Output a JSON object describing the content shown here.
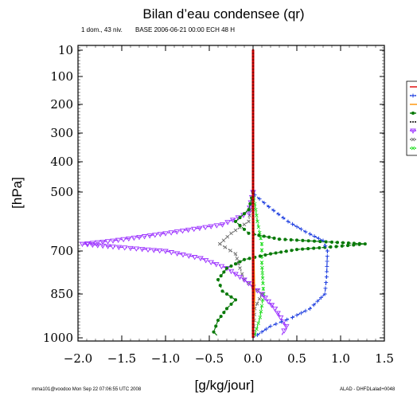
{
  "header": {
    "title": "Bilan d’eau condensee (qr)",
    "subtitle_left": "1 dom., 43 niv.",
    "subtitle_right": "BASE 2006-06-21 00:00 ECH 48 H"
  },
  "footer": {
    "left": "mma101@voodoo Mon Sep 22 07:06:55 UTC 2008",
    "right": "ALAD - DHFDLalad+0048"
  },
  "chart_data": {
    "type": "line",
    "xlabel": "[g/kg/jour]",
    "ylabel": "[hPa]",
    "xlim": [
      -2.0,
      1.5
    ],
    "xticks": [
      -2.0,
      -1.5,
      -1.0,
      -0.5,
      0.0,
      0.5,
      1.0,
      1.5
    ],
    "xtick_labels": [
      "−2.0",
      "−1.5",
      "−1.0",
      "−0.5",
      "0.0",
      "0.5",
      "1.0",
      "1.5"
    ],
    "yticks": [
      10,
      100,
      200,
      300,
      400,
      500,
      700,
      850,
      1000
    ],
    "ytick_labels": [
      "10",
      "100",
      "200",
      "300",
      "400",
      "500",
      "700",
      "850",
      "1000"
    ],
    "y_scale": "piecewise pressure axis, increasing downward",
    "grid": false,
    "legend_position": "right, outside plot",
    "series": [
      {
        "color": "#e00000",
        "dash": "solid",
        "marker": "none",
        "points": [
          [
            0,
            10
          ],
          [
            0,
            100
          ],
          [
            0,
            200
          ],
          [
            0,
            300
          ],
          [
            0,
            400
          ],
          [
            0,
            500
          ],
          [
            0,
            600
          ],
          [
            0,
            700
          ],
          [
            0,
            850
          ],
          [
            0,
            1000
          ]
        ]
      },
      {
        "color": "#2040e0",
        "dash": "dash",
        "marker": "plus",
        "points": [
          [
            0,
            500
          ],
          [
            0.02,
            510
          ],
          [
            0.18,
            550
          ],
          [
            0.4,
            600
          ],
          [
            0.6,
            635
          ],
          [
            0.8,
            665
          ],
          [
            0.85,
            700
          ],
          [
            0.84,
            790
          ],
          [
            0.82,
            850
          ],
          [
            0.65,
            900
          ],
          [
            0.45,
            930
          ],
          [
            0.2,
            960
          ],
          [
            0.05,
            990
          ],
          [
            0,
            1000
          ]
        ]
      },
      {
        "color": "#ff9000",
        "dash": "solid",
        "marker": "none",
        "points": [
          [
            0,
            500
          ],
          [
            0.01,
            600
          ],
          [
            0.01,
            700
          ],
          [
            0.02,
            850
          ],
          [
            0.01,
            950
          ],
          [
            0,
            1000
          ]
        ]
      },
      {
        "color": "#0a7a0a",
        "dash": "dash",
        "marker": "dot",
        "points": [
          [
            0,
            500
          ],
          [
            -0.05,
            560
          ],
          [
            -0.2,
            600
          ],
          [
            -0.05,
            640
          ],
          [
            0.3,
            660
          ],
          [
            0.9,
            670
          ],
          [
            1.28,
            676
          ],
          [
            0.95,
            685
          ],
          [
            0.5,
            695
          ],
          [
            0.2,
            710
          ],
          [
            -0.1,
            730
          ],
          [
            -0.3,
            760
          ],
          [
            -0.4,
            800
          ],
          [
            -0.35,
            840
          ],
          [
            -0.2,
            870
          ],
          [
            -0.3,
            900
          ],
          [
            -0.4,
            940
          ],
          [
            -0.45,
            980
          ],
          [
            -0.4,
            995
          ]
        ]
      },
      {
        "color": "#000000",
        "dash": "dash",
        "marker": "none",
        "points": [
          [
            0,
            500
          ],
          [
            0,
            600
          ],
          [
            0,
            700
          ],
          [
            0,
            850
          ],
          [
            0,
            1000
          ]
        ]
      },
      {
        "color": "#9b30ff",
        "dash": "dashdot",
        "marker": "triangle",
        "points": [
          [
            0,
            500
          ],
          [
            -0.05,
            570
          ],
          [
            -0.35,
            610
          ],
          [
            -1.0,
            640
          ],
          [
            -1.6,
            665
          ],
          [
            -1.95,
            676
          ],
          [
            -1.6,
            685
          ],
          [
            -1.0,
            700
          ],
          [
            -0.6,
            725
          ],
          [
            -0.3,
            760
          ],
          [
            -0.1,
            800
          ],
          [
            0.1,
            850
          ],
          [
            0.25,
            900
          ],
          [
            0.38,
            960
          ],
          [
            0.33,
            990
          ]
        ]
      },
      {
        "color": "#707070",
        "dash": "dot",
        "marker": "x",
        "points": [
          [
            0,
            500
          ],
          [
            -0.05,
            600
          ],
          [
            -0.25,
            640
          ],
          [
            -0.38,
            676
          ],
          [
            -0.2,
            710
          ],
          [
            -0.15,
            760
          ],
          [
            -0.1,
            800
          ],
          [
            0.1,
            850
          ],
          [
            0.02,
            900
          ],
          [
            0,
            1000
          ]
        ]
      },
      {
        "color": "#22dd22",
        "dash": "dash",
        "marker": "x",
        "points": [
          [
            0,
            500
          ],
          [
            0.05,
            600
          ],
          [
            0.1,
            676
          ],
          [
            0.1,
            740
          ],
          [
            0.12,
            850
          ],
          [
            0.08,
            930
          ],
          [
            0.02,
            990
          ],
          [
            0,
            1000
          ]
        ]
      }
    ]
  }
}
